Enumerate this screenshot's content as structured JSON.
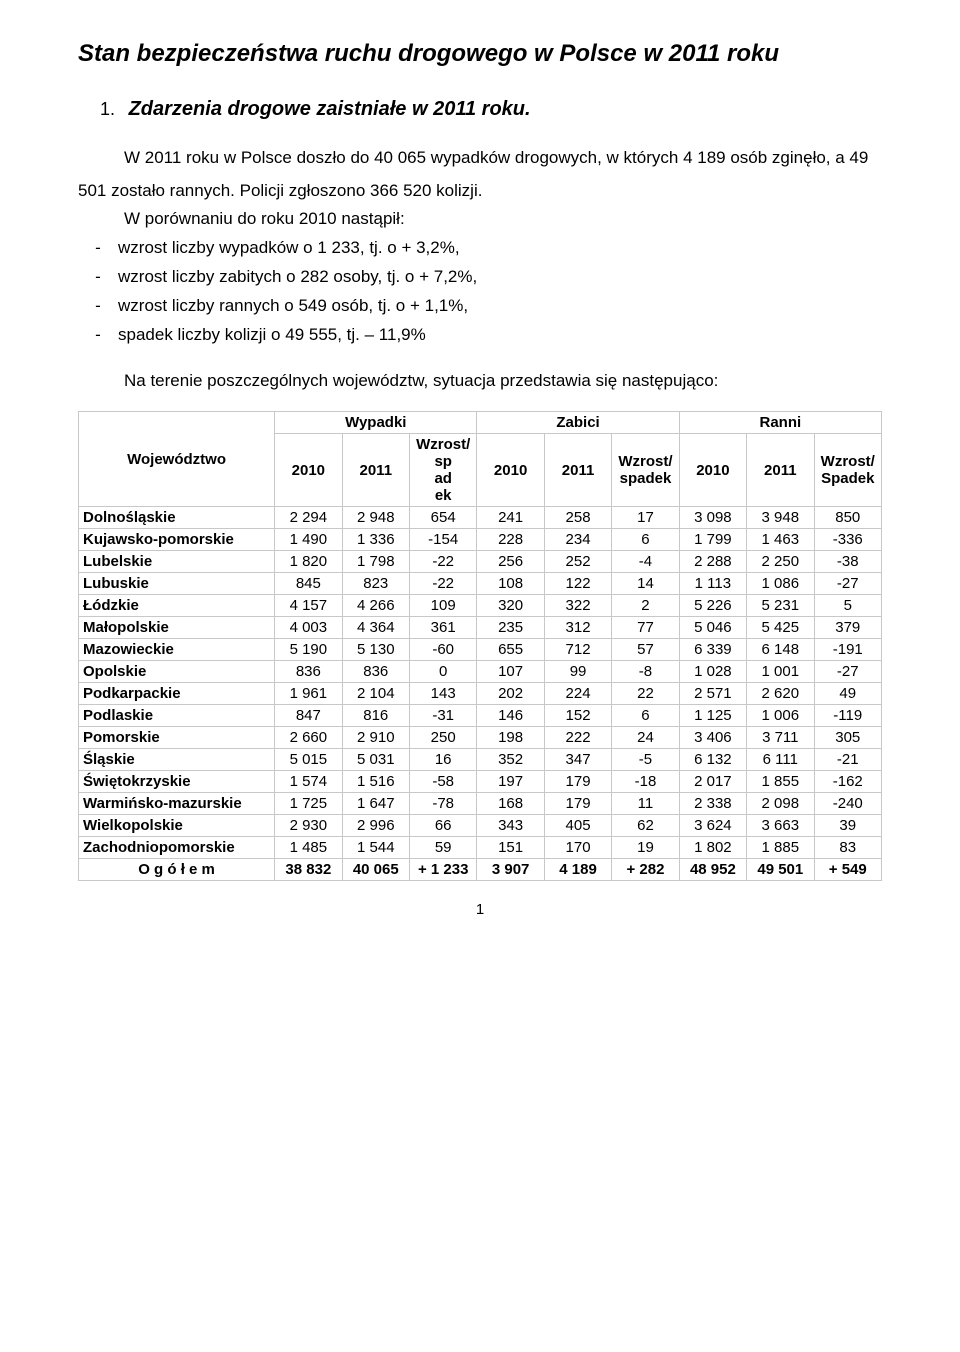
{
  "title": "Stan bezpieczeństwa ruchu drogowego w Polsce w 2011 roku",
  "section": {
    "number": "1.",
    "heading": "Zdarzenia drogowe zaistniałe w 2011 roku."
  },
  "intro": {
    "line1a": "W 2011 roku w Polsce doszło do 40 065 wypadków drogowych, w których 4 189 osób zginęło, a 49",
    "line1b": "501 zostało rannych. Policji zgłoszono 366 520 kolizji.",
    "compare_intro": "W porównaniu do roku 2010 nastąpił:",
    "bullets": [
      "wzrost liczby wypadków o 1 233, tj. o  + 3,2%,",
      "wzrost liczby zabitych o 282 osoby, tj. o + 7,2%,",
      "wzrost liczby rannych o 549 osób, tj. o + 1,1%,",
      "spadek liczby kolizji o 49 555, tj. – 11,9%"
    ],
    "table_intro": "Na terenie poszczególnych województw, sytuacja przedstawia się następująco:"
  },
  "table": {
    "headers": {
      "woj": "Województwo",
      "wypadki": "Wypadki",
      "zabici": "Zabici",
      "ranni": "Ranni",
      "y2010": "2010",
      "y2011": "2011",
      "wzrost_sp_ad_ek": "Wzrost/\nsp\nad\nek",
      "wzrost_spadek": "Wzrost/\nspadek",
      "wzrost_spadek_cap": "Wzrost/\nSpadek"
    },
    "rows": [
      {
        "woj": "Dolnośląskie",
        "w10": "2 294",
        "w11": "2 948",
        "wd": "654",
        "z10": "241",
        "z11": "258",
        "zd": "17",
        "r10": "3 098",
        "r11": "3 948",
        "rd": "850"
      },
      {
        "woj": "Kujawsko-pomorskie",
        "w10": "1 490",
        "w11": "1 336",
        "wd": "-154",
        "z10": "228",
        "z11": "234",
        "zd": "6",
        "r10": "1 799",
        "r11": "1 463",
        "rd": "-336"
      },
      {
        "woj": "Lubelskie",
        "w10": "1 820",
        "w11": "1 798",
        "wd": "-22",
        "z10": "256",
        "z11": "252",
        "zd": "-4",
        "r10": "2 288",
        "r11": "2 250",
        "rd": "-38"
      },
      {
        "woj": "Lubuskie",
        "w10": "845",
        "w11": "823",
        "wd": "-22",
        "z10": "108",
        "z11": "122",
        "zd": "14",
        "r10": "1 113",
        "r11": "1 086",
        "rd": "-27"
      },
      {
        "woj": "Łódzkie",
        "w10": "4 157",
        "w11": "4 266",
        "wd": "109",
        "z10": "320",
        "z11": "322",
        "zd": "2",
        "r10": "5 226",
        "r11": "5 231",
        "rd": "5"
      },
      {
        "woj": "Małopolskie",
        "w10": "4 003",
        "w11": "4 364",
        "wd": "361",
        "z10": "235",
        "z11": "312",
        "zd": "77",
        "r10": "5 046",
        "r11": "5 425",
        "rd": "379"
      },
      {
        "woj": "Mazowieckie",
        "w10": "5 190",
        "w11": "5 130",
        "wd": "-60",
        "z10": "655",
        "z11": "712",
        "zd": "57",
        "r10": "6 339",
        "r11": "6 148",
        "rd": "-191"
      },
      {
        "woj": "Opolskie",
        "w10": "836",
        "w11": "836",
        "wd": "0",
        "z10": "107",
        "z11": "99",
        "zd": "-8",
        "r10": "1 028",
        "r11": "1 001",
        "rd": "-27"
      },
      {
        "woj": "Podkarpackie",
        "w10": "1 961",
        "w11": "2 104",
        "wd": "143",
        "z10": "202",
        "z11": "224",
        "zd": "22",
        "r10": "2 571",
        "r11": "2 620",
        "rd": "49"
      },
      {
        "woj": "Podlaskie",
        "w10": "847",
        "w11": "816",
        "wd": "-31",
        "z10": "146",
        "z11": "152",
        "zd": "6",
        "r10": "1 125",
        "r11": "1 006",
        "rd": "-119"
      },
      {
        "woj": "Pomorskie",
        "w10": "2 660",
        "w11": "2 910",
        "wd": "250",
        "z10": "198",
        "z11": "222",
        "zd": "24",
        "r10": "3 406",
        "r11": "3 711",
        "rd": "305"
      },
      {
        "woj": "Śląskie",
        "w10": "5 015",
        "w11": "5 031",
        "wd": "16",
        "z10": "352",
        "z11": "347",
        "zd": "-5",
        "r10": "6 132",
        "r11": "6 111",
        "rd": "-21"
      },
      {
        "woj": "Świętokrzyskie",
        "w10": "1 574",
        "w11": "1 516",
        "wd": "-58",
        "z10": "197",
        "z11": "179",
        "zd": "-18",
        "r10": "2 017",
        "r11": "1 855",
        "rd": "-162"
      },
      {
        "woj": "Warmińsko-mazurskie",
        "w10": "1 725",
        "w11": "1 647",
        "wd": "-78",
        "z10": "168",
        "z11": "179",
        "zd": "11",
        "r10": "2 338",
        "r11": "2 098",
        "rd": "-240"
      },
      {
        "woj": "Wielkopolskie",
        "w10": "2 930",
        "w11": "2 996",
        "wd": "66",
        "z10": "343",
        "z11": "405",
        "zd": "62",
        "r10": "3 624",
        "r11": "3 663",
        "rd": "39"
      },
      {
        "woj": "Zachodniopomorskie",
        "w10": "1 485",
        "w11": "1 544",
        "wd": "59",
        "z10": "151",
        "z11": "170",
        "zd": "19",
        "r10": "1 802",
        "r11": "1 885",
        "rd": "83"
      }
    ],
    "total": {
      "woj": "O g ó ł e m",
      "w10": "38 832",
      "w11": "40 065",
      "wd": "+ 1 233",
      "z10": "3 907",
      "z11": "4 189",
      "zd": "+ 282",
      "r10": "48 952",
      "r11": "49 501",
      "rd": "+ 549"
    }
  },
  "pagenum": "1"
}
